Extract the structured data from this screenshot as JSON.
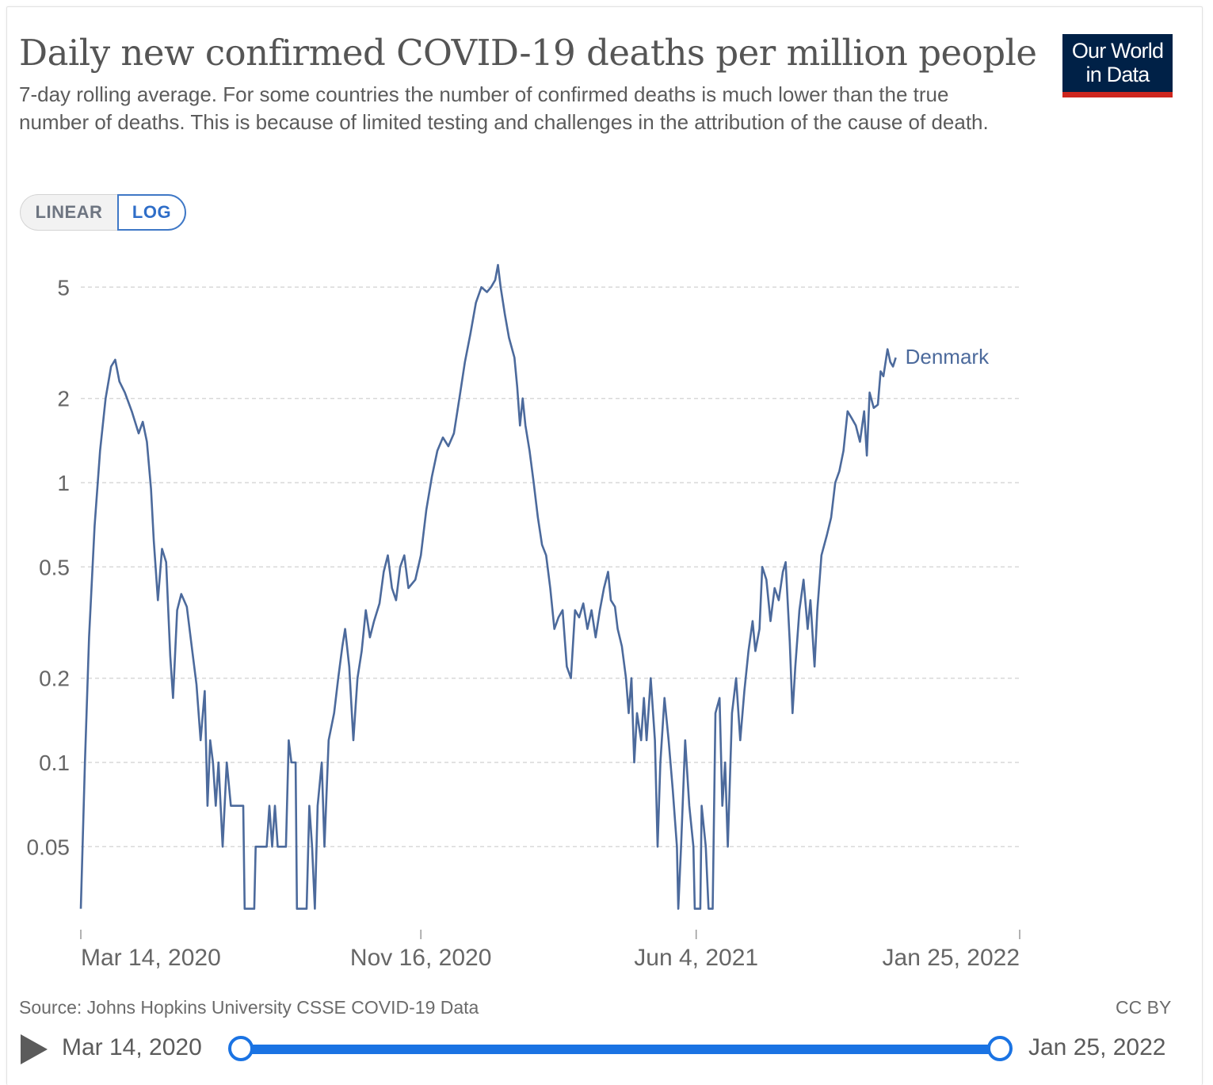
{
  "header": {
    "title": "Daily new confirmed COVID-19 deaths per million people",
    "subtitle": "7-day rolling average. For some countries the number of confirmed deaths is much lower than the true number of deaths. This is because of limited testing and challenges in the attribution of the cause of death.",
    "logo_line1": "Our World",
    "logo_line2": "in Data"
  },
  "scale_toggle": {
    "linear_label": "LINEAR",
    "log_label": "LOG",
    "selected": "LOG"
  },
  "footer": {
    "source": "Source: Johns Hopkins University CSSE COVID-19 Data",
    "license": "CC BY"
  },
  "timeline": {
    "start_label": "Mar 14, 2020",
    "end_label": "Jan 25, 2022",
    "play_icon": "play-icon"
  },
  "colors": {
    "line": "#4c6a9c",
    "brand": "#002147",
    "brand_accent": "#ce261e",
    "slider": "#1a73e3"
  },
  "chart_data": {
    "type": "line",
    "y_scale": "log",
    "ylim": [
      0.03,
      6
    ],
    "y_ticks": [
      {
        "value": 5,
        "label": "5"
      },
      {
        "value": 2,
        "label": "2"
      },
      {
        "value": 1,
        "label": "1"
      },
      {
        "value": 0.5,
        "label": "0.5"
      },
      {
        "value": 0.2,
        "label": "0.2"
      },
      {
        "value": 0.1,
        "label": "0.1"
      },
      {
        "value": 0.05,
        "label": "0.05"
      }
    ],
    "x_range": [
      "2020-03-14",
      "2022-01-25"
    ],
    "x_ticks": [
      {
        "date": "2020-03-14",
        "label": "Mar 14, 2020"
      },
      {
        "date": "2020-11-16",
        "label": "Nov 16, 2020"
      },
      {
        "date": "2021-06-04",
        "label": "Jun 4, 2021"
      },
      {
        "date": "2022-01-25",
        "label": "Jan 25, 2022"
      }
    ],
    "grid": true,
    "series": [
      {
        "name": "Denmark",
        "points": [
          [
            "2020-03-14",
            0.03
          ],
          [
            "2020-03-17",
            0.1
          ],
          [
            "2020-03-20",
            0.28
          ],
          [
            "2020-03-24",
            0.7
          ],
          [
            "2020-03-28",
            1.3
          ],
          [
            "2020-04-01",
            2.0
          ],
          [
            "2020-04-05",
            2.6
          ],
          [
            "2020-04-08",
            2.75
          ],
          [
            "2020-04-11",
            2.3
          ],
          [
            "2020-04-15",
            2.1
          ],
          [
            "2020-04-20",
            1.8
          ],
          [
            "2020-04-25",
            1.5
          ],
          [
            "2020-04-28",
            1.65
          ],
          [
            "2020-05-01",
            1.4
          ],
          [
            "2020-05-04",
            0.95
          ],
          [
            "2020-05-06",
            0.62
          ],
          [
            "2020-05-09",
            0.38
          ],
          [
            "2020-05-12",
            0.58
          ],
          [
            "2020-05-15",
            0.52
          ],
          [
            "2020-05-18",
            0.24
          ],
          [
            "2020-05-20",
            0.17
          ],
          [
            "2020-05-23",
            0.35
          ],
          [
            "2020-05-26",
            0.4
          ],
          [
            "2020-05-30",
            0.36
          ],
          [
            "2020-06-03",
            0.25
          ],
          [
            "2020-06-06",
            0.19
          ],
          [
            "2020-06-09",
            0.12
          ],
          [
            "2020-06-12",
            0.18
          ],
          [
            "2020-06-14",
            0.07
          ],
          [
            "2020-06-16",
            0.12
          ],
          [
            "2020-06-18",
            0.1
          ],
          [
            "2020-06-20",
            0.07
          ],
          [
            "2020-06-22",
            0.1
          ],
          [
            "2020-06-25",
            0.05
          ],
          [
            "2020-06-28",
            0.1
          ],
          [
            "2020-07-01",
            0.07
          ],
          [
            "2020-07-10",
            0.07
          ],
          [
            "2020-07-11",
            0.03
          ],
          [
            "2020-07-18",
            0.03
          ],
          [
            "2020-07-19",
            0.05
          ],
          [
            "2020-07-23",
            0.05
          ],
          [
            "2020-07-27",
            0.05
          ],
          [
            "2020-07-29",
            0.07
          ],
          [
            "2020-07-31",
            0.05
          ],
          [
            "2020-08-02",
            0.07
          ],
          [
            "2020-08-04",
            0.05
          ],
          [
            "2020-08-10",
            0.05
          ],
          [
            "2020-08-12",
            0.12
          ],
          [
            "2020-08-14",
            0.1
          ],
          [
            "2020-08-17",
            0.1
          ],
          [
            "2020-08-18",
            0.03
          ],
          [
            "2020-08-25",
            0.03
          ],
          [
            "2020-08-27",
            0.07
          ],
          [
            "2020-08-29",
            0.05
          ],
          [
            "2020-08-31",
            0.03
          ],
          [
            "2020-09-02",
            0.07
          ],
          [
            "2020-09-05",
            0.1
          ],
          [
            "2020-09-07",
            0.05
          ],
          [
            "2020-09-10",
            0.12
          ],
          [
            "2020-09-14",
            0.15
          ],
          [
            "2020-09-17",
            0.2
          ],
          [
            "2020-09-20",
            0.26
          ],
          [
            "2020-09-22",
            0.3
          ],
          [
            "2020-09-25",
            0.22
          ],
          [
            "2020-09-28",
            0.12
          ],
          [
            "2020-10-01",
            0.2
          ],
          [
            "2020-10-04",
            0.25
          ],
          [
            "2020-10-07",
            0.35
          ],
          [
            "2020-10-10",
            0.28
          ],
          [
            "2020-10-13",
            0.32
          ],
          [
            "2020-10-17",
            0.37
          ],
          [
            "2020-10-20",
            0.48
          ],
          [
            "2020-10-23",
            0.55
          ],
          [
            "2020-10-26",
            0.42
          ],
          [
            "2020-10-29",
            0.38
          ],
          [
            "2020-11-01",
            0.5
          ],
          [
            "2020-11-04",
            0.55
          ],
          [
            "2020-11-07",
            0.42
          ],
          [
            "2020-11-12",
            0.45
          ],
          [
            "2020-11-16",
            0.55
          ],
          [
            "2020-11-20",
            0.8
          ],
          [
            "2020-11-24",
            1.05
          ],
          [
            "2020-11-28",
            1.3
          ],
          [
            "2020-12-02",
            1.45
          ],
          [
            "2020-12-06",
            1.35
          ],
          [
            "2020-12-10",
            1.5
          ],
          [
            "2020-12-14",
            2.0
          ],
          [
            "2020-12-18",
            2.7
          ],
          [
            "2020-12-22",
            3.4
          ],
          [
            "2020-12-26",
            4.4
          ],
          [
            "2020-12-30",
            5.0
          ],
          [
            "2021-01-03",
            4.8
          ],
          [
            "2021-01-06",
            5.0
          ],
          [
            "2021-01-09",
            5.3
          ],
          [
            "2021-01-11",
            6.0
          ],
          [
            "2021-01-13",
            5.0
          ],
          [
            "2021-01-16",
            4.0
          ],
          [
            "2021-01-19",
            3.3
          ],
          [
            "2021-01-23",
            2.8
          ],
          [
            "2021-01-25",
            2.2
          ],
          [
            "2021-01-27",
            1.6
          ],
          [
            "2021-01-29",
            2.0
          ],
          [
            "2021-01-31",
            1.6
          ],
          [
            "2021-02-03",
            1.3
          ],
          [
            "2021-02-06",
            1.0
          ],
          [
            "2021-02-09",
            0.75
          ],
          [
            "2021-02-12",
            0.6
          ],
          [
            "2021-02-15",
            0.55
          ],
          [
            "2021-02-18",
            0.42
          ],
          [
            "2021-02-21",
            0.3
          ],
          [
            "2021-02-24",
            0.33
          ],
          [
            "2021-02-27",
            0.35
          ],
          [
            "2021-03-02",
            0.22
          ],
          [
            "2021-03-05",
            0.2
          ],
          [
            "2021-03-08",
            0.35
          ],
          [
            "2021-03-11",
            0.33
          ],
          [
            "2021-03-14",
            0.37
          ],
          [
            "2021-03-17",
            0.3
          ],
          [
            "2021-03-20",
            0.35
          ],
          [
            "2021-03-23",
            0.28
          ],
          [
            "2021-03-26",
            0.35
          ],
          [
            "2021-03-29",
            0.42
          ],
          [
            "2021-04-01",
            0.48
          ],
          [
            "2021-04-03",
            0.38
          ],
          [
            "2021-04-06",
            0.36
          ],
          [
            "2021-04-08",
            0.3
          ],
          [
            "2021-04-11",
            0.26
          ],
          [
            "2021-04-14",
            0.2
          ],
          [
            "2021-04-16",
            0.15
          ],
          [
            "2021-04-18",
            0.2
          ],
          [
            "2021-04-20",
            0.1
          ],
          [
            "2021-04-22",
            0.15
          ],
          [
            "2021-04-25",
            0.12
          ],
          [
            "2021-04-27",
            0.17
          ],
          [
            "2021-04-29",
            0.12
          ],
          [
            "2021-05-02",
            0.2
          ],
          [
            "2021-05-05",
            0.12
          ],
          [
            "2021-05-07",
            0.05
          ],
          [
            "2021-05-09",
            0.1
          ],
          [
            "2021-05-12",
            0.17
          ],
          [
            "2021-05-15",
            0.12
          ],
          [
            "2021-05-18",
            0.08
          ],
          [
            "2021-05-21",
            0.05
          ],
          [
            "2021-05-22",
            0.03
          ],
          [
            "2021-05-24",
            0.05
          ],
          [
            "2021-05-27",
            0.12
          ],
          [
            "2021-05-30",
            0.07
          ],
          [
            "2021-06-02",
            0.05
          ],
          [
            "2021-06-03",
            0.03
          ],
          [
            "2021-06-07",
            0.03
          ],
          [
            "2021-06-08",
            0.07
          ],
          [
            "2021-06-11",
            0.05
          ],
          [
            "2021-06-13",
            0.03
          ],
          [
            "2021-06-16",
            0.03
          ],
          [
            "2021-06-18",
            0.15
          ],
          [
            "2021-06-21",
            0.17
          ],
          [
            "2021-06-23",
            0.07
          ],
          [
            "2021-06-25",
            0.1
          ],
          [
            "2021-06-27",
            0.05
          ],
          [
            "2021-06-30",
            0.15
          ],
          [
            "2021-07-03",
            0.2
          ],
          [
            "2021-07-06",
            0.12
          ],
          [
            "2021-07-09",
            0.18
          ],
          [
            "2021-07-12",
            0.25
          ],
          [
            "2021-07-15",
            0.32
          ],
          [
            "2021-07-17",
            0.25
          ],
          [
            "2021-07-20",
            0.3
          ],
          [
            "2021-07-22",
            0.5
          ],
          [
            "2021-07-25",
            0.45
          ],
          [
            "2021-07-28",
            0.32
          ],
          [
            "2021-07-31",
            0.42
          ],
          [
            "2021-08-03",
            0.38
          ],
          [
            "2021-08-06",
            0.48
          ],
          [
            "2021-08-08",
            0.52
          ],
          [
            "2021-08-11",
            0.27
          ],
          [
            "2021-08-13",
            0.15
          ],
          [
            "2021-08-15",
            0.22
          ],
          [
            "2021-08-18",
            0.35
          ],
          [
            "2021-08-21",
            0.45
          ],
          [
            "2021-08-24",
            0.3
          ],
          [
            "2021-08-26",
            0.38
          ],
          [
            "2021-08-29",
            0.22
          ],
          [
            "2021-08-31",
            0.35
          ],
          [
            "2021-09-03",
            0.55
          ],
          [
            "2021-09-07",
            0.65
          ],
          [
            "2021-09-10",
            0.75
          ],
          [
            "2021-09-13",
            1.0
          ],
          [
            "2021-09-16",
            1.1
          ],
          [
            "2021-09-19",
            1.3
          ],
          [
            "2021-09-22",
            1.8
          ],
          [
            "2021-09-25",
            1.7
          ],
          [
            "2021-09-28",
            1.6
          ],
          [
            "2021-10-01",
            1.4
          ],
          [
            "2021-10-04",
            1.8
          ],
          [
            "2021-10-06",
            1.25
          ],
          [
            "2021-10-08",
            2.1
          ],
          [
            "2021-10-11",
            1.85
          ],
          [
            "2021-10-14",
            1.9
          ],
          [
            "2021-10-16",
            2.5
          ],
          [
            "2021-10-18",
            2.4
          ],
          [
            "2021-10-21",
            3.0
          ],
          [
            "2021-10-23",
            2.7
          ],
          [
            "2021-10-25",
            2.6
          ],
          [
            "2021-10-27",
            2.8
          ]
        ]
      }
    ]
  }
}
